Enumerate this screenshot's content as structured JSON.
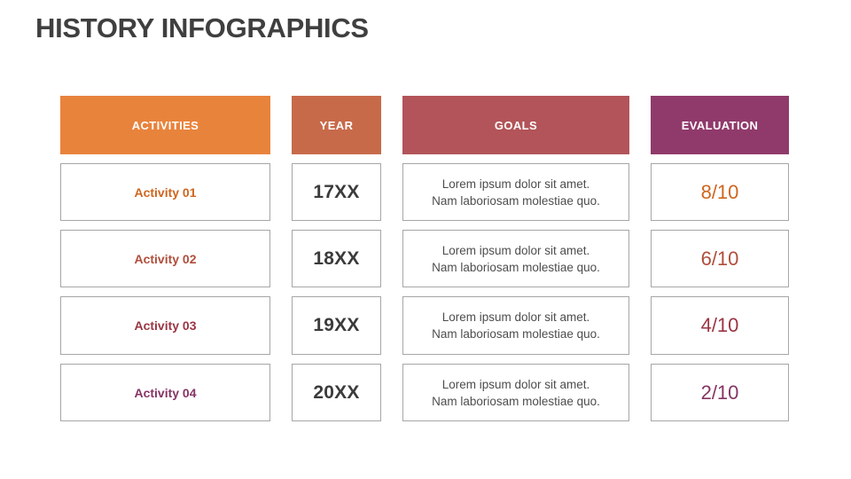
{
  "title": "HISTORY INFOGRAPHICS",
  "colors": {
    "title_text": "#3F3F3F",
    "header_text": "#FFFFFF",
    "cell_border": "#A6A6A6",
    "year_text": "#3B3B3B",
    "goals_text": "#4D4D4D"
  },
  "columns": [
    {
      "label": "ACTIVITIES",
      "header_bg": "#E8833C"
    },
    {
      "label": "YEAR",
      "header_bg": "#C76A4A"
    },
    {
      "label": "GOALS",
      "header_bg": "#B25459"
    },
    {
      "label": "EVALUATION",
      "header_bg": "#903A6B"
    }
  ],
  "rows": [
    {
      "activity": "Activity 01",
      "year": "17XX",
      "goal_line1": "Lorem ipsum dolor sit amet.",
      "goal_line2": "Nam laboriosam molestiae quo.",
      "evaluation": "8/10",
      "accent": "#CE661F"
    },
    {
      "activity": "Activity 02",
      "year": "18XX",
      "goal_line1": "Lorem ipsum dolor sit amet.",
      "goal_line2": "Nam laboriosam molestiae quo.",
      "evaluation": "6/10",
      "accent": "#B04E3B"
    },
    {
      "activity": "Activity 03",
      "year": "19XX",
      "goal_line1": "Lorem ipsum dolor sit amet.",
      "goal_line2": "Nam laboriosam molestiae quo.",
      "evaluation": "4/10",
      "accent": "#9B3543"
    },
    {
      "activity": "Activity 04",
      "year": "20XX",
      "goal_line1": "Lorem ipsum dolor sit amet.",
      "goal_line2": "Nam laboriosam molestiae quo.",
      "evaluation": "2/10",
      "accent": "#873464"
    }
  ]
}
